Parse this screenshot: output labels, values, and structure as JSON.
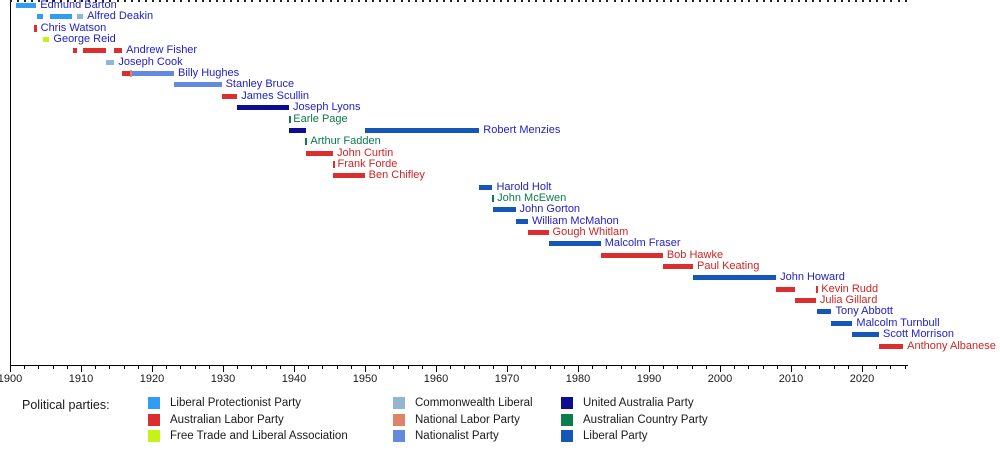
{
  "legend": {
    "heading": "Political parties:",
    "columns": [
      [
        "liberal_protectionist",
        "labor",
        "free_trade"
      ],
      [
        "commonwealth_liberal",
        "national_labor",
        "nationalist"
      ],
      [
        "united_australia",
        "country",
        "liberal"
      ]
    ]
  },
  "parties": {
    "liberal_protectionist": {
      "label": "Liberal Protectionist Party",
      "color": "#2e9df3"
    },
    "labor": {
      "label": "Australian Labor Party",
      "color": "#db2e2e"
    },
    "free_trade": {
      "label": "Free Trade and Liberal Association",
      "color": "#c6f215"
    },
    "commonwealth_liberal": {
      "label": "Commonwealth Liberal",
      "color": "#92b6d0"
    },
    "national_labor": {
      "label": "National Labor Party",
      "color": "#e08468"
    },
    "nationalist": {
      "label": "Nationalist Party",
      "color": "#6489e0"
    },
    "united_australia": {
      "label": "United Australia Party",
      "color": "#0d0d94"
    },
    "country": {
      "label": "Australian Country Party",
      "color": "#0c7e4c"
    },
    "liberal": {
      "label": "Liberal Party",
      "color": "#1457b8"
    }
  },
  "label_colors": {
    "blue": "#2121c8",
    "red": "#d02424",
    "green": "#0b7a4a"
  },
  "chart_data": {
    "type": "bar",
    "subtype": "gantt-timeline",
    "title": "",
    "xlabel": "",
    "ylabel": "",
    "x_range": [
      1900,
      2026.5
    ],
    "x_major_ticks": [
      1900,
      1910,
      1920,
      1930,
      1940,
      1950,
      1960,
      1970,
      1980,
      1990,
      2000,
      2010,
      2020
    ],
    "x_minor_step": 2,
    "grid": false,
    "legend_position": "bottom",
    "axis_color": "#000000",
    "pms": [
      {
        "name": "Edmund Barton",
        "label_color": "blue",
        "segments": [
          {
            "party": "liberal_protectionist",
            "start": 1900.8,
            "end": 1903.7
          }
        ]
      },
      {
        "name": "Alfred Deakin",
        "label_color": "blue",
        "segments": [
          {
            "party": "liberal_protectionist",
            "start": 1903.8,
            "end": 1904.6
          },
          {
            "party": "liberal_protectionist",
            "start": 1905.6,
            "end": 1908.7
          },
          {
            "party": "commonwealth_liberal",
            "start": 1909.4,
            "end": 1910.3
          }
        ]
      },
      {
        "name": "Chris Watson",
        "label_color": "blue",
        "segments": [
          {
            "party": "labor",
            "start": 1903.45,
            "end": 1903.75
          }
        ]
      },
      {
        "name": "George Reid",
        "label_color": "blue",
        "segments": [
          {
            "party": "free_trade",
            "start": 1904.65,
            "end": 1905.55
          }
        ]
      },
      {
        "name": "Andrew Fisher",
        "label_color": "blue",
        "segments": [
          {
            "party": "labor",
            "start": 1908.9,
            "end": 1909.4
          },
          {
            "party": "labor",
            "start": 1910.3,
            "end": 1913.5
          },
          {
            "party": "labor",
            "start": 1914.7,
            "end": 1915.8
          }
        ]
      },
      {
        "name": "Joseph Cook",
        "label_color": "blue",
        "segments": [
          {
            "party": "commonwealth_liberal",
            "start": 1913.5,
            "end": 1914.7
          }
        ]
      },
      {
        "name": "Billy Hughes",
        "label_color": "blue",
        "segments": [
          {
            "party": "labor",
            "start": 1915.8,
            "end": 1916.9
          },
          {
            "party": "national_labor",
            "start": 1916.9,
            "end": 1917.15
          },
          {
            "party": "nationalist",
            "start": 1917.15,
            "end": 1923.1
          }
        ]
      },
      {
        "name": "Stanley Bruce",
        "label_color": "blue",
        "segments": [
          {
            "party": "nationalist",
            "start": 1923.1,
            "end": 1929.8
          }
        ]
      },
      {
        "name": "James Scullin",
        "label_color": "blue",
        "segments": [
          {
            "party": "labor",
            "start": 1929.8,
            "end": 1932.0
          }
        ]
      },
      {
        "name": "Joseph Lyons",
        "label_color": "blue",
        "segments": [
          {
            "party": "united_australia",
            "start": 1932.0,
            "end": 1939.3
          }
        ]
      },
      {
        "name": "Earle Page",
        "label_color": "green",
        "segments": [
          {
            "party": "country",
            "start": 1939.27,
            "end": 1939.33
          }
        ]
      },
      {
        "name": "Robert Menzies",
        "label_color": "blue",
        "segments": [
          {
            "party": "united_australia",
            "start": 1939.3,
            "end": 1941.65
          },
          {
            "party": "liberal",
            "start": 1949.95,
            "end": 1966.1
          }
        ]
      },
      {
        "name": "Arthur Fadden",
        "label_color": "green",
        "segments": [
          {
            "party": "country",
            "start": 1941.6,
            "end": 1941.75
          }
        ]
      },
      {
        "name": "John Curtin",
        "label_color": "red",
        "segments": [
          {
            "party": "labor",
            "start": 1941.75,
            "end": 1945.5
          }
        ]
      },
      {
        "name": "Frank Forde",
        "label_color": "red",
        "segments": [
          {
            "party": "labor",
            "start": 1945.5,
            "end": 1945.56
          }
        ]
      },
      {
        "name": "Ben Chifley",
        "label_color": "red",
        "segments": [
          {
            "party": "labor",
            "start": 1945.56,
            "end": 1949.95
          }
        ]
      },
      {
        "name": "Harold Holt",
        "label_color": "blue",
        "segments": [
          {
            "party": "liberal",
            "start": 1966.1,
            "end": 1967.95
          }
        ]
      },
      {
        "name": "John McEwen",
        "label_color": "green",
        "segments": [
          {
            "party": "country",
            "start": 1967.95,
            "end": 1968.05
          }
        ]
      },
      {
        "name": "John Gorton",
        "label_color": "blue",
        "segments": [
          {
            "party": "liberal",
            "start": 1968.05,
            "end": 1971.2
          }
        ]
      },
      {
        "name": "William McMahon",
        "label_color": "blue",
        "segments": [
          {
            "party": "liberal",
            "start": 1971.2,
            "end": 1972.95
          }
        ]
      },
      {
        "name": "Gough Whitlam",
        "label_color": "red",
        "segments": [
          {
            "party": "labor",
            "start": 1972.95,
            "end": 1975.85
          }
        ]
      },
      {
        "name": "Malcolm Fraser",
        "label_color": "blue",
        "segments": [
          {
            "party": "liberal",
            "start": 1975.85,
            "end": 1983.2
          }
        ]
      },
      {
        "name": "Bob Hawke",
        "label_color": "red",
        "segments": [
          {
            "party": "labor",
            "start": 1983.2,
            "end": 1991.95
          }
        ]
      },
      {
        "name": "Paul Keating",
        "label_color": "red",
        "segments": [
          {
            "party": "labor",
            "start": 1991.95,
            "end": 1996.2
          }
        ]
      },
      {
        "name": "John Howard",
        "label_color": "blue",
        "segments": [
          {
            "party": "liberal",
            "start": 1996.2,
            "end": 2007.9
          }
        ]
      },
      {
        "name": "Kevin Rudd",
        "label_color": "red",
        "segments": [
          {
            "party": "labor",
            "start": 2007.9,
            "end": 2010.5
          },
          {
            "party": "labor",
            "start": 2013.5,
            "end": 2013.7
          }
        ]
      },
      {
        "name": "Julia Gillard",
        "label_color": "red",
        "segments": [
          {
            "party": "labor",
            "start": 2010.5,
            "end": 2013.5
          }
        ]
      },
      {
        "name": "Tony Abbott",
        "label_color": "blue",
        "segments": [
          {
            "party": "liberal",
            "start": 2013.7,
            "end": 2015.7
          }
        ]
      },
      {
        "name": "Malcolm Turnbull",
        "label_color": "blue",
        "segments": [
          {
            "party": "liberal",
            "start": 2015.7,
            "end": 2018.65
          }
        ]
      },
      {
        "name": "Scott Morrison",
        "label_color": "blue",
        "segments": [
          {
            "party": "liberal",
            "start": 2018.65,
            "end": 2022.4
          }
        ]
      },
      {
        "name": "Anthony Albanese",
        "label_color": "red",
        "segments": [
          {
            "party": "labor",
            "start": 2022.4,
            "end": 2025.8
          }
        ]
      }
    ]
  }
}
